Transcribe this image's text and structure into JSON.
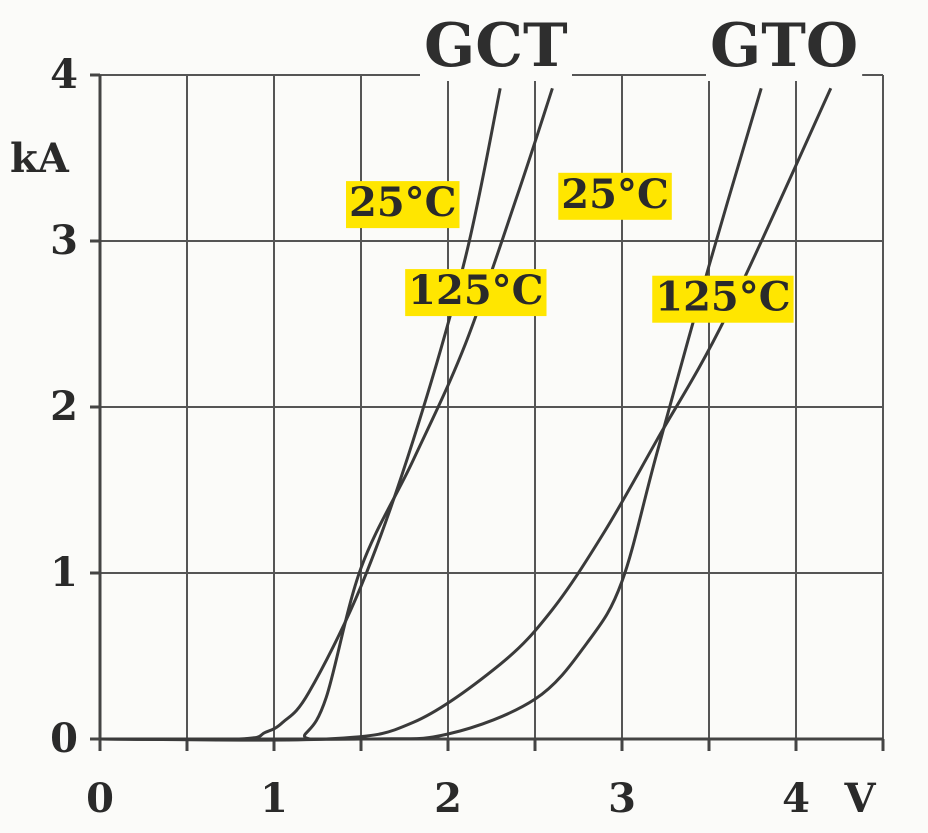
{
  "chart_data": {
    "type": "line",
    "title_left": "GCT",
    "title_right": "GTO",
    "xlabel": "V",
    "ylabel": "kA",
    "xlim": [
      0,
      4.5
    ],
    "ylim": [
      0,
      4
    ],
    "x_ticks": [
      "0",
      "1",
      "2",
      "3",
      "4"
    ],
    "y_ticks": [
      "0",
      "1",
      "2",
      "3",
      "4"
    ],
    "grid": true,
    "annotation_color": "#ffe600",
    "series": [
      {
        "name": "GCT 25°C",
        "x": [
          0,
          0.8,
          0.95,
          1.05,
          1.2,
          1.5,
          1.8,
          2.1,
          2.3
        ],
        "y": [
          0,
          0.0,
          0.04,
          0.1,
          0.28,
          0.92,
          1.8,
          2.9,
          3.92
        ]
      },
      {
        "name": "GCT 125°C",
        "x": [
          0,
          1.1,
          1.18,
          1.3,
          1.5,
          1.8,
          2.1,
          2.4,
          2.6
        ],
        "y": [
          0,
          0.0,
          0.03,
          0.25,
          1.03,
          1.68,
          2.38,
          3.28,
          3.92
        ]
      },
      {
        "name": "GTO 25°C",
        "x": [
          0,
          1.5,
          2.0,
          2.5,
          2.8,
          3.0,
          3.2,
          3.5,
          3.8
        ],
        "y": [
          0,
          0.0,
          0.03,
          0.24,
          0.58,
          0.95,
          1.72,
          2.85,
          3.92
        ]
      },
      {
        "name": "GTO 125°C",
        "x": [
          0,
          1.3,
          1.8,
          2.3,
          2.6,
          2.9,
          3.2,
          3.6,
          4.2
        ],
        "y": [
          0,
          0.0,
          0.1,
          0.45,
          0.78,
          1.25,
          1.8,
          2.55,
          3.92
        ]
      }
    ],
    "annotations": [
      {
        "text": "25°C",
        "x": 1.74,
        "y": 3.15
      },
      {
        "text": "125°C",
        "x": 2.16,
        "y": 2.62
      },
      {
        "text": "25°C",
        "x": 2.96,
        "y": 3.2
      },
      {
        "text": "125°C",
        "x": 3.58,
        "y": 2.58
      }
    ]
  }
}
